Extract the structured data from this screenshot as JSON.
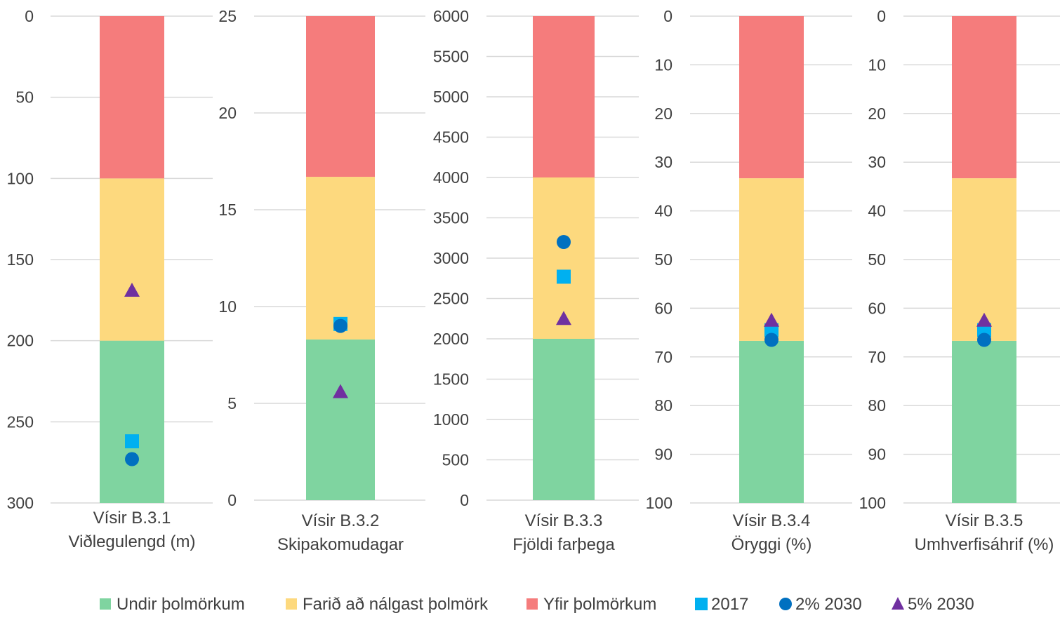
{
  "chart_data": [
    {
      "type": "bar",
      "category_lines": [
        "Vísir B.3.1",
        "Viðlegulengd (m)"
      ],
      "ylim": [
        0,
        300
      ],
      "y_inverted": true,
      "ticks": [
        0,
        50,
        100,
        150,
        200,
        250,
        300
      ],
      "bands": {
        "red": [
          0,
          100
        ],
        "yellow": [
          100,
          200
        ],
        "green": [
          200,
          300
        ]
      },
      "points": {
        "2017": 262,
        "2% 2030": 273,
        "5% 2030": 169
      }
    },
    {
      "type": "bar",
      "category_lines": [
        "Vísir B.3.2",
        "Skipakomudagar"
      ],
      "ylim": [
        0,
        25
      ],
      "y_inverted": false,
      "ticks": [
        0,
        5,
        10,
        15,
        20,
        25
      ],
      "bands": {
        "green": [
          0,
          8.3
        ],
        "yellow": [
          8.3,
          16.7
        ],
        "red": [
          16.7,
          25
        ]
      },
      "points": {
        "2017": 9.1,
        "2% 2030": 9.0,
        "5% 2030": 5.6
      }
    },
    {
      "type": "bar",
      "category_lines": [
        "Vísir B.3.3",
        "Fjöldi farþega"
      ],
      "ylim": [
        0,
        6000
      ],
      "y_inverted": false,
      "ticks": [
        0,
        500,
        1000,
        1500,
        2000,
        2500,
        3000,
        3500,
        4000,
        4500,
        5000,
        5500,
        6000
      ],
      "bands": {
        "green": [
          0,
          2000
        ],
        "yellow": [
          2000,
          4000
        ],
        "red": [
          4000,
          6000
        ]
      },
      "points": {
        "2017": 2770,
        "2% 2030": 3200,
        "5% 2030": 2250
      }
    },
    {
      "type": "bar",
      "category_lines": [
        "Vísir B.3.4",
        "Öryggi (%)"
      ],
      "ylim": [
        0,
        100
      ],
      "y_inverted": true,
      "ticks": [
        0,
        10,
        20,
        30,
        40,
        50,
        60,
        70,
        80,
        90,
        100
      ],
      "bands": {
        "red": [
          0,
          33.3
        ],
        "yellow": [
          33.3,
          66.7
        ],
        "green": [
          66.7,
          100
        ]
      },
      "points": {
        "2017": 64.5,
        "2% 2030": 66.5,
        "5% 2030": 62.5
      }
    },
    {
      "type": "bar",
      "category_lines": [
        "Vísir B.3.5",
        "Umhverfisáhrif (%)"
      ],
      "ylim": [
        0,
        100
      ],
      "y_inverted": true,
      "ticks": [
        0,
        10,
        20,
        30,
        40,
        50,
        60,
        70,
        80,
        90,
        100
      ],
      "bands": {
        "red": [
          0,
          33.3
        ],
        "yellow": [
          33.3,
          66.7
        ],
        "green": [
          66.7,
          100
        ]
      },
      "points": {
        "2017": 64.5,
        "2% 2030": 66.5,
        "5% 2030": 62.5
      }
    }
  ],
  "legend": [
    {
      "name": "Undir þolmörkum",
      "marker": "square-small",
      "color": "#7fd4a0"
    },
    {
      "name": "Farið að nálgast þolmörk",
      "marker": "square-small",
      "color": "#fdd97e"
    },
    {
      "name": "Yfir þolmörkum",
      "marker": "square-small",
      "color": "#f57c7c"
    },
    {
      "name": "2017",
      "marker": "square",
      "color": "#00b0f0"
    },
    {
      "name": "2% 2030",
      "marker": "circle",
      "color": "#0070c0"
    },
    {
      "name": "5% 2030",
      "marker": "triangle",
      "color": "#7030a0"
    }
  ],
  "colors": {
    "green": "#7fd4a0",
    "yellow": "#fdd97e",
    "red": "#f57c7c",
    "marker_2017": "#00b0f0",
    "marker_2pct": "#0070c0",
    "marker_5pct": "#7030a0"
  }
}
